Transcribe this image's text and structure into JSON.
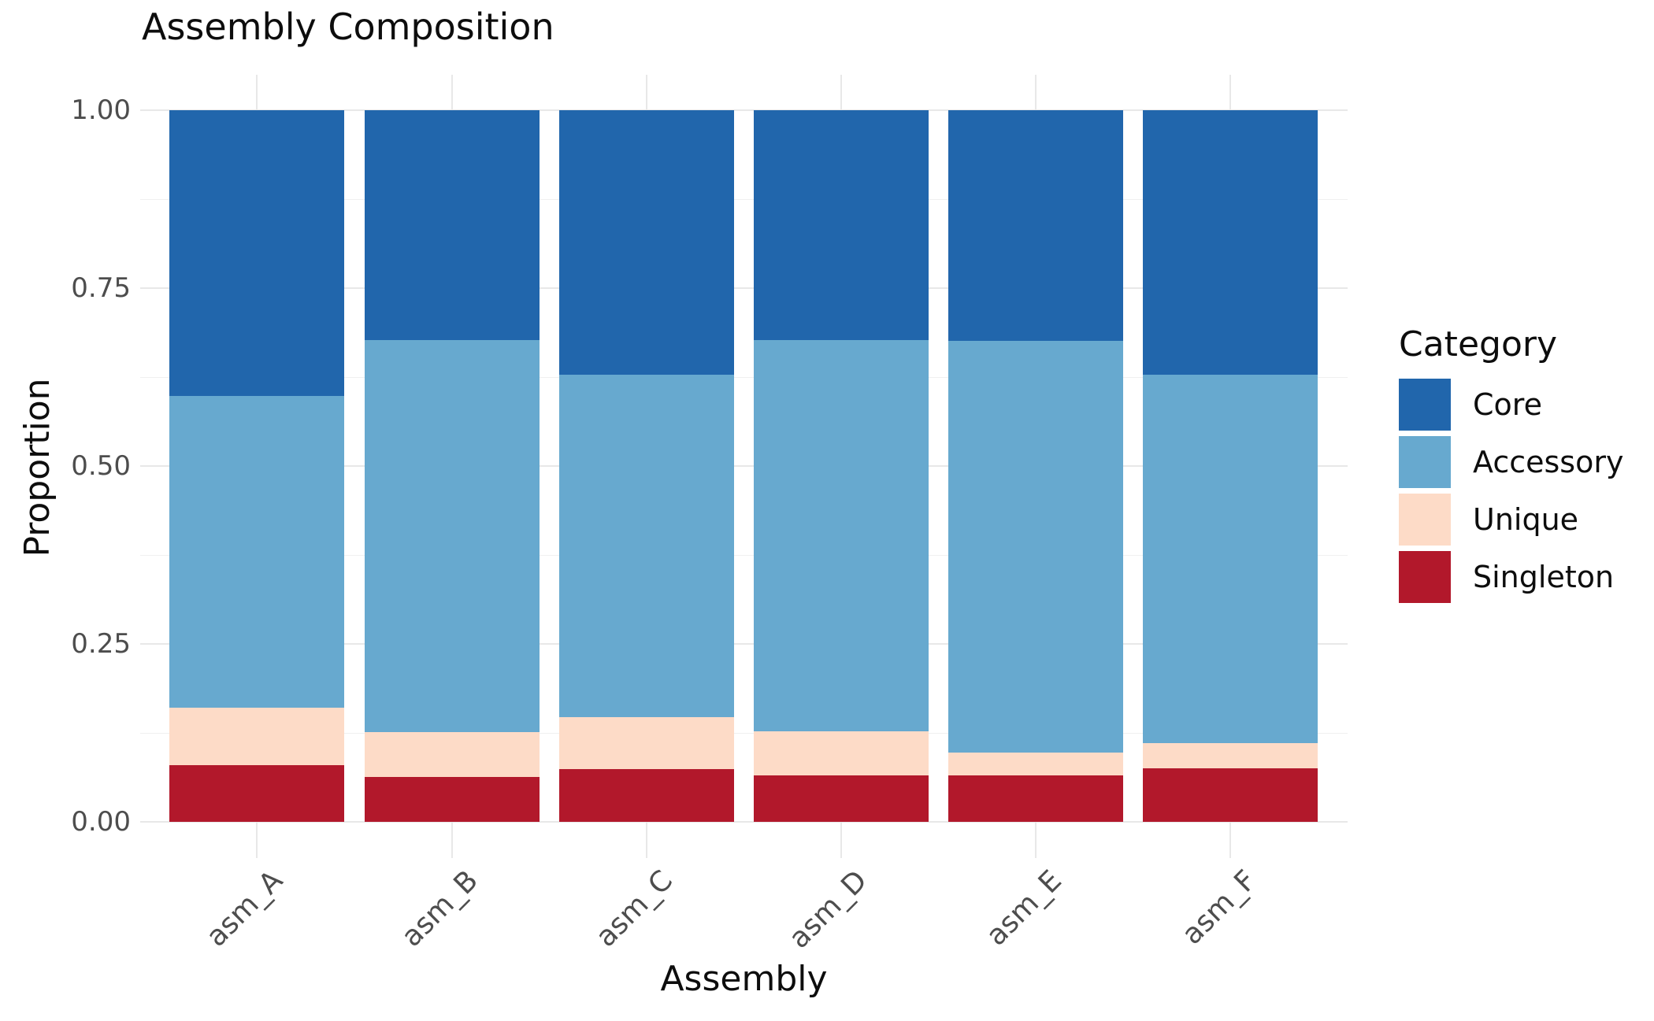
{
  "title": "Assembly Composition",
  "axis": {
    "x_title": "Assembly",
    "y_title": "Proportion",
    "y_ticks": [
      {
        "label": "1.00",
        "value": 1.0
      },
      {
        "label": "0.75",
        "value": 0.75
      },
      {
        "label": "0.50",
        "value": 0.5
      },
      {
        "label": "0.25",
        "value": 0.25
      },
      {
        "label": "0.00",
        "value": 0.0
      }
    ]
  },
  "legend": {
    "title": "Category",
    "entries": [
      {
        "label": "Core",
        "color": "#2166ac"
      },
      {
        "label": "Accessory",
        "color": "#67a9cf"
      },
      {
        "label": "Unique",
        "color": "#fddbc7"
      },
      {
        "label": "Singleton",
        "color": "#b2182b"
      }
    ]
  },
  "colors": {
    "background": "#ffffff",
    "grid_major": "#e8e8e8",
    "grid_minor": "#f0f0f0",
    "tick_text": "#4d4d4d",
    "title_text": "#0d0d0d"
  },
  "chart_data": {
    "type": "bar",
    "stacked": true,
    "normalized": true,
    "title": "Assembly Composition",
    "xlabel": "Assembly",
    "ylabel": "Proportion",
    "ylim": [
      0,
      1
    ],
    "grid": true,
    "legend_position": "right",
    "y_major_ticks": [
      0,
      0.25,
      0.5,
      0.75,
      1.0
    ],
    "y_minor_gridlines": [
      0.125,
      0.375,
      0.625,
      0.875
    ],
    "categories": [
      "asm_A",
      "asm_B",
      "asm_C",
      "asm_D",
      "asm_E",
      "asm_F"
    ],
    "series": [
      {
        "name": "Core",
        "color": "#2166ac",
        "values": [
          0.402,
          0.323,
          0.372,
          0.323,
          0.324,
          0.372
        ]
      },
      {
        "name": "Accessory",
        "color": "#67a9cf",
        "values": [
          0.438,
          0.551,
          0.481,
          0.55,
          0.579,
          0.517
        ]
      },
      {
        "name": "Unique",
        "color": "#fddbc7",
        "values": [
          0.08,
          0.063,
          0.073,
          0.062,
          0.032,
          0.036
        ]
      },
      {
        "name": "Singleton",
        "color": "#b2182b",
        "values": [
          0.08,
          0.063,
          0.074,
          0.065,
          0.065,
          0.075
        ]
      }
    ]
  }
}
